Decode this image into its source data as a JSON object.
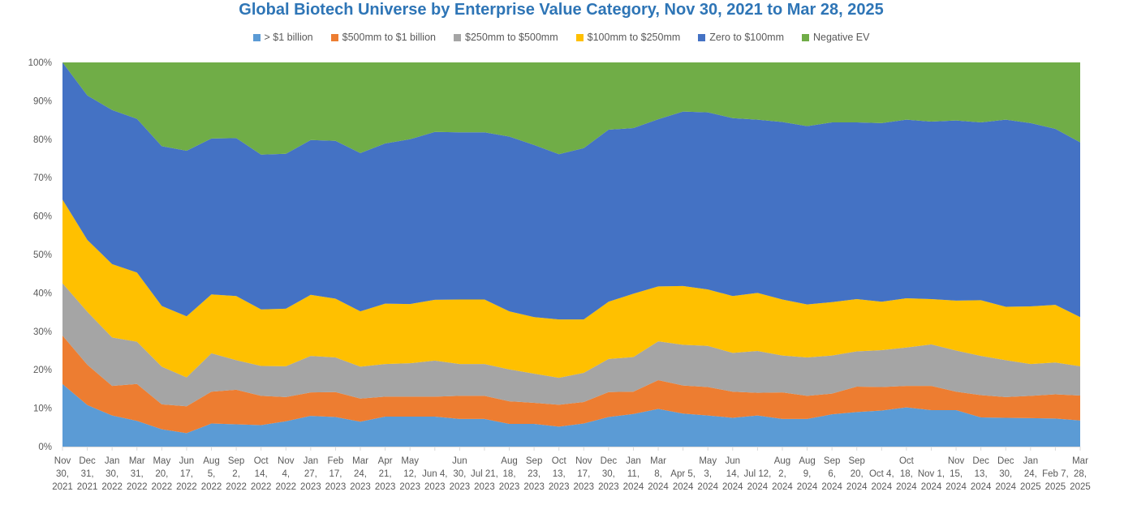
{
  "chart_data": {
    "type": "area",
    "stacked": true,
    "percent": true,
    "title": "Global Biotech Universe by Enterprise Value Category, Nov 30, 2021 to Mar 28, 2025",
    "ylim": [
      0,
      100
    ],
    "yticks": [
      "0%",
      "10%",
      "20%",
      "30%",
      "40%",
      "50%",
      "60%",
      "70%",
      "80%",
      "90%",
      "100%"
    ],
    "grid": false,
    "legend_position": "top",
    "categories": [
      [
        "Nov",
        "30,",
        "2021"
      ],
      [
        "Dec",
        "31,",
        "2021"
      ],
      [
        "Jan",
        "30,",
        "2022"
      ],
      [
        "Mar",
        "31,",
        "2022"
      ],
      [
        "May",
        "20,",
        "2022"
      ],
      [
        "Jun",
        "17,",
        "2022"
      ],
      [
        "Aug",
        "5,",
        "2022"
      ],
      [
        "Sep",
        "2,",
        "2022"
      ],
      [
        "Oct",
        "14,",
        "2022"
      ],
      [
        "Nov",
        "4,",
        "2022"
      ],
      [
        "Jan",
        "27,",
        "2023"
      ],
      [
        "Feb",
        "17,",
        "2023"
      ],
      [
        "Mar",
        "24,",
        "2023"
      ],
      [
        "Apr",
        "21,",
        "2023"
      ],
      [
        "May",
        "12,",
        "2023"
      ],
      [
        "Jun 4,",
        "2023"
      ],
      [
        "Jun",
        "30,",
        "2023"
      ],
      [
        "Jul 21,",
        "2023"
      ],
      [
        "Aug",
        "18,",
        "2023"
      ],
      [
        "Sep",
        "23,",
        "2023"
      ],
      [
        "Oct",
        "13,",
        "2023"
      ],
      [
        "Nov",
        "17,",
        "2023"
      ],
      [
        "Dec",
        "30,",
        "2023"
      ],
      [
        "Jan",
        "11,",
        "2024"
      ],
      [
        "Mar",
        "8,",
        "2024"
      ],
      [
        "Apr 5,",
        "2024"
      ],
      [
        "May",
        "3,",
        "2024"
      ],
      [
        "Jun",
        "14,",
        "2024"
      ],
      [
        "Jul 12,",
        "2024"
      ],
      [
        "Aug",
        "2,",
        "2024"
      ],
      [
        "Aug",
        "9,",
        "2024"
      ],
      [
        "Sep",
        "6,",
        "2024"
      ],
      [
        "Sep",
        "20,",
        "2024"
      ],
      [
        "Oct 4,",
        "2024"
      ],
      [
        "Oct",
        "18,",
        "2024"
      ],
      [
        "Nov 1,",
        "2024"
      ],
      [
        "Nov",
        "15,",
        "2024"
      ],
      [
        "Dec",
        "13,",
        "2024"
      ],
      [
        "Dec",
        "30,",
        "2024"
      ],
      [
        "Jan",
        "24,",
        "2025"
      ],
      [
        "Feb 7,",
        "2025"
      ],
      [
        "Mar",
        "28,",
        "2025"
      ]
    ],
    "series": [
      {
        "name": "> $1 billion",
        "color": "#5B9BD5",
        "values": [
          16.3,
          10.8,
          8.1,
          6.7,
          4.5,
          3.5,
          6.0,
          5.8,
          5.6,
          6.6,
          8.0,
          7.7,
          6.5,
          7.8,
          7.8,
          7.8,
          7.2,
          7.2,
          5.9,
          5.9,
          5.2,
          6.0,
          7.7,
          8.5,
          9.8,
          8.6,
          8.1,
          7.5,
          8.1,
          7.2,
          7.2,
          8.4,
          9.0,
          9.4,
          10.2,
          9.5,
          9.5,
          7.6,
          7.5,
          7.4,
          7.3,
          6.8
        ]
      },
      {
        "name": "$500mm to $1 billion",
        "color": "#ED7D31",
        "values": [
          12.6,
          10.5,
          7.7,
          9.6,
          6.5,
          7.0,
          8.3,
          9.0,
          7.6,
          6.3,
          6.1,
          6.5,
          6.0,
          5.2,
          5.2,
          5.2,
          6.0,
          6.0,
          5.9,
          5.5,
          5.7,
          5.6,
          6.5,
          5.8,
          7.5,
          7.3,
          7.4,
          6.8,
          5.9,
          6.9,
          6.0,
          5.4,
          6.6,
          6.1,
          5.6,
          6.3,
          4.8,
          5.8,
          5.4,
          5.8,
          6.3,
          6.5
        ]
      },
      {
        "name": "$250mm to $500mm",
        "color": "#A5A5A5",
        "values": [
          13.6,
          13.8,
          12.6,
          11.0,
          9.8,
          7.5,
          10.0,
          7.7,
          7.8,
          8.0,
          9.5,
          9.0,
          8.3,
          8.5,
          8.7,
          9.4,
          8.3,
          8.3,
          8.3,
          7.6,
          7.0,
          7.6,
          8.6,
          9.0,
          10.1,
          10.6,
          10.7,
          10.1,
          10.9,
          9.6,
          10.0,
          9.9,
          9.2,
          9.6,
          10.0,
          10.8,
          10.7,
          10.2,
          9.6,
          8.3,
          8.3,
          7.6
        ]
      },
      {
        "name": "$100mm to $250mm",
        "color": "#FFC000",
        "values": [
          21.8,
          18.7,
          19.1,
          18.0,
          15.8,
          15.9,
          15.3,
          16.7,
          14.7,
          15.0,
          15.9,
          15.3,
          14.4,
          15.7,
          15.4,
          15.8,
          16.8,
          16.8,
          15.1,
          14.7,
          15.2,
          13.9,
          14.9,
          16.5,
          14.3,
          15.3,
          14.7,
          14.8,
          15.1,
          14.6,
          13.8,
          13.9,
          13.6,
          12.6,
          12.8,
          11.8,
          13.0,
          14.5,
          13.9,
          15.0,
          15.0,
          12.8
        ]
      },
      {
        "name": "Zero to $100mm",
        "color": "#4472C4",
        "values": [
          35.7,
          37.6,
          40.1,
          40.0,
          41.6,
          43.1,
          40.6,
          41.1,
          40.3,
          40.3,
          40.3,
          41.1,
          41.2,
          41.7,
          42.9,
          43.7,
          43.5,
          43.5,
          45.5,
          44.8,
          43.0,
          44.6,
          44.8,
          43.1,
          43.5,
          45.4,
          46.1,
          46.3,
          45.1,
          46.2,
          46.4,
          46.8,
          46.0,
          46.5,
          46.5,
          46.2,
          46.9,
          46.3,
          48.7,
          47.7,
          45.8,
          45.5
        ]
      },
      {
        "name": "Negative EV",
        "color": "#70AD47",
        "values": [
          0,
          8.6,
          12.4,
          14.7,
          21.8,
          23.0,
          19.8,
          19.7,
          24.0,
          23.8,
          20.2,
          20.4,
          23.6,
          21.1,
          20.0,
          18.1,
          18.2,
          18.2,
          19.3,
          21.5,
          23.9,
          22.3,
          17.5,
          17.1,
          14.8,
          12.8,
          13.0,
          14.5,
          14.9,
          15.5,
          16.6,
          15.6,
          15.6,
          15.8,
          14.9,
          15.4,
          15.1,
          15.6,
          14.9,
          15.8,
          17.3,
          20.8
        ]
      }
    ]
  }
}
